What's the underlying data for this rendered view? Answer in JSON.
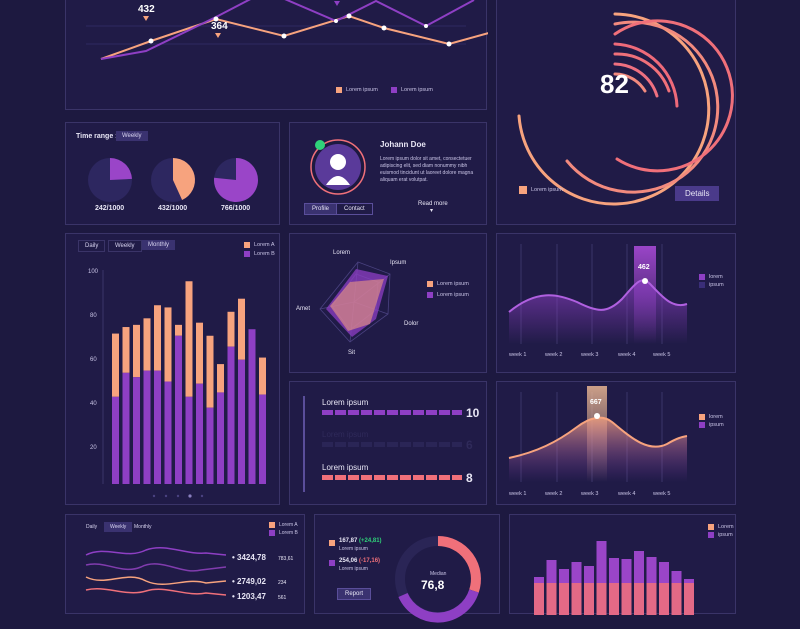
{
  "colors": {
    "bg": "#1d1940",
    "panel": "#201b47",
    "peach": "#f7a37e",
    "purple": "#8e3fc4",
    "coral": "#f0707a"
  },
  "top_line": {
    "labels": [
      "432",
      "364"
    ],
    "legend": [
      "Lorem ipsum",
      "Lorem ipsum"
    ]
  },
  "gauge": {
    "value": "82",
    "button": "Details",
    "legend": "Lorem ipsum"
  },
  "time_range": {
    "label": "Time range :",
    "select": "Weekly",
    "pies": [
      {
        "value": 0.242,
        "text": "242/1000"
      },
      {
        "value": 0.432,
        "text": "432/1000"
      },
      {
        "value": 0.766,
        "text": "766/1000"
      }
    ]
  },
  "profile": {
    "name": "Johann Doe",
    "bio": "Lorem ipsum dolor sit amet, consectetuer adipiscing elit, sed diam nonummy nibh euismod tincidunt ut laoreet dolore magna aliquam erat volutpat.",
    "btn_profile": "Profile",
    "btn_contact": "Contact",
    "read_more": "Read more"
  },
  "bar_chart": {
    "tabs": [
      "Daily",
      "Weekly",
      "Monthly"
    ],
    "legend": [
      "Lorem A",
      "Lorem B"
    ],
    "yticks": [
      "100",
      "80",
      "60",
      "40",
      "20"
    ]
  },
  "radar": {
    "labels": [
      "Lorem",
      "Ipsum",
      "Dolor",
      "Sit",
      "Amet"
    ],
    "legend": [
      "Lorem ipsum",
      "Lorem ipsum"
    ]
  },
  "wave1": {
    "badge": "462",
    "weeks": [
      "week 1",
      "week 2",
      "week 3",
      "week 4",
      "week 5"
    ],
    "legend": [
      "lorem",
      "ipsum"
    ]
  },
  "wave2": {
    "badge": "667",
    "weeks": [
      "week 1",
      "week 2",
      "week 3",
      "week 4",
      "week 5"
    ],
    "legend": [
      "lorem",
      "ipsum"
    ]
  },
  "progress": {
    "rows": [
      {
        "label": "Lorem ipsum",
        "value": "10",
        "fill": 1.0
      },
      {
        "label": "Lorem ipsum",
        "value": "6",
        "fill": 0.6
      },
      {
        "label": "Lorem ipsum",
        "value": "8",
        "fill": 0.8
      }
    ]
  },
  "bottom_left": {
    "tabs": [
      "Daily",
      "Weekly",
      "Monthly"
    ],
    "legend": [
      "Lorem A",
      "Lorem B"
    ],
    "rows": [
      {
        "value": "3424,78",
        "sub": "783,61"
      },
      {
        "value": "2749,02",
        "sub": "234"
      },
      {
        "value": "1203,47",
        "sub": "561"
      }
    ]
  },
  "donut": {
    "items": [
      {
        "value": "167,87",
        "delta": "(+24,81)",
        "label": "Lorem ipsum"
      },
      {
        "value": "254,06",
        "delta": "(-17,16)",
        "label": "Lorem ipsum"
      }
    ],
    "center_label": "Median",
    "center_value": "76,8",
    "button": "Report"
  },
  "bottom_bars": {
    "legend": [
      "Lorem",
      "ipsum"
    ]
  }
}
